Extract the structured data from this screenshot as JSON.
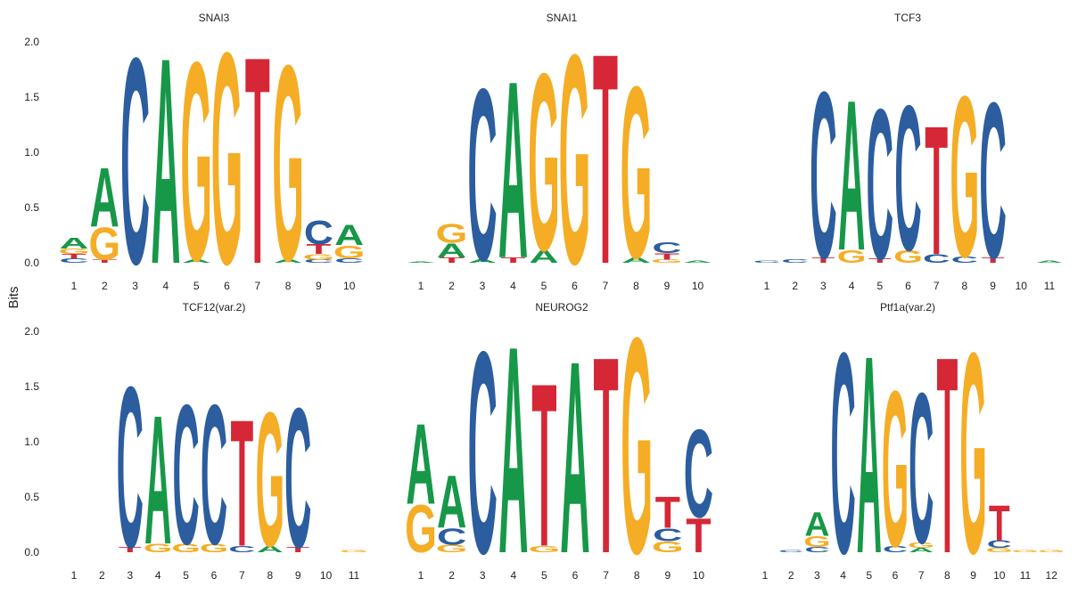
{
  "chart_data": {
    "type": "sequence_logo",
    "ylabel": "Bits",
    "ylim": [
      0,
      2
    ],
    "yticks": [
      "0.0",
      "0.5",
      "1.0",
      "1.5",
      "2.0"
    ],
    "colors": {
      "A": "#169848",
      "C": "#2b5d9f",
      "G": "#f4ad25",
      "T": "#d52736"
    },
    "panels": [
      {
        "title": "SNAI3",
        "positions": [
          "1",
          "2",
          "3",
          "4",
          "5",
          "6",
          "7",
          "8",
          "9",
          "10"
        ],
        "stacks": [
          [
            [
              "C",
              0.04
            ],
            [
              "T",
              0.04
            ],
            [
              "G",
              0.05
            ],
            [
              "A",
              0.1
            ]
          ],
          [
            [
              "T",
              0.03
            ],
            [
              "G",
              0.3
            ],
            [
              "A",
              0.55
            ]
          ],
          [
            [
              "C",
              1.92
            ]
          ],
          [
            [
              "A",
              1.92
            ]
          ],
          [
            [
              "A",
              0.03
            ],
            [
              "G",
              1.85
            ]
          ],
          [
            [
              "G",
              1.97
            ]
          ],
          [
            [
              "T",
              1.93
            ]
          ],
          [
            [
              "A",
              0.03
            ],
            [
              "G",
              1.82
            ]
          ],
          [
            [
              "C",
              0.03
            ],
            [
              "G",
              0.05
            ],
            [
              "T",
              0.09
            ],
            [
              "C",
              0.22
            ]
          ],
          [
            [
              "C",
              0.04
            ],
            [
              "G",
              0.12
            ],
            [
              "A",
              0.19
            ]
          ]
        ]
      },
      {
        "title": "SNAI1",
        "positions": [
          "1",
          "2",
          "3",
          "4",
          "5",
          "6",
          "7",
          "8",
          "9",
          "10"
        ],
        "stacks": [
          [
            [
              "A",
              0.01
            ]
          ],
          [
            [
              "T",
              0.05
            ],
            [
              "A",
              0.13
            ],
            [
              "G",
              0.18
            ]
          ],
          [
            [
              "A",
              0.03
            ],
            [
              "C",
              1.6
            ]
          ],
          [
            [
              "T",
              0.05
            ],
            [
              "A",
              1.65
            ]
          ],
          [
            [
              "A",
              0.12
            ],
            [
              "G",
              1.65
            ]
          ],
          [
            [
              "G",
              1.95
            ]
          ],
          [
            [
              "T",
              1.96
            ]
          ],
          [
            [
              "A",
              0.05
            ],
            [
              "G",
              1.6
            ]
          ],
          [
            [
              "G",
              0.03
            ],
            [
              "T",
              0.06
            ],
            [
              "C",
              0.1
            ]
          ],
          [
            [
              "A",
              0.02
            ]
          ]
        ]
      },
      {
        "title": "TCF3",
        "positions": [
          "1",
          "2",
          "3",
          "4",
          "5",
          "6",
          "7",
          "8",
          "9",
          "10",
          "11"
        ],
        "stacks": [
          [
            [
              "C",
              0.02
            ]
          ],
          [
            [
              "C",
              0.03
            ]
          ],
          [
            [
              "T",
              0.05
            ],
            [
              "C",
              1.55
            ]
          ],
          [
            [
              "G",
              0.12
            ],
            [
              "A",
              1.4
            ]
          ],
          [
            [
              "T",
              0.04
            ],
            [
              "C",
              1.4
            ]
          ],
          [
            [
              "G",
              0.12
            ],
            [
              "C",
              1.35
            ]
          ],
          [
            [
              "C",
              0.08
            ],
            [
              "T",
              1.2
            ]
          ],
          [
            [
              "C",
              0.06
            ],
            [
              "G",
              1.5
            ]
          ],
          [
            [
              "T",
              0.05
            ],
            [
              "C",
              1.45
            ]
          ],
          [],
          [
            [
              "A",
              0.02
            ]
          ]
        ]
      },
      {
        "title": "TCF12(var.2)",
        "positions": [
          "1",
          "2",
          "3",
          "4",
          "5",
          "6",
          "7",
          "8",
          "9",
          "10",
          "11"
        ],
        "stacks": [
          [],
          [],
          [
            [
              "T",
              0.05
            ],
            [
              "C",
              1.5
            ]
          ],
          [
            [
              "G",
              0.08
            ],
            [
              "A",
              1.2
            ]
          ],
          [
            [
              "G",
              0.08
            ],
            [
              "C",
              1.3
            ]
          ],
          [
            [
              "G",
              0.08
            ],
            [
              "C",
              1.3
            ]
          ],
          [
            [
              "C",
              0.06
            ],
            [
              "T",
              1.18
            ]
          ],
          [
            [
              "A",
              0.06
            ],
            [
              "G",
              1.25
            ]
          ],
          [
            [
              "T",
              0.05
            ],
            [
              "C",
              1.3
            ]
          ],
          [],
          [
            [
              "G",
              0.02
            ]
          ]
        ]
      },
      {
        "title": "NEUROG2",
        "positions": [
          "1",
          "2",
          "3",
          "4",
          "5",
          "6",
          "7",
          "8",
          "9",
          "10"
        ],
        "stacks": [
          [
            [
              "G",
              0.44
            ],
            [
              "A",
              0.75
            ]
          ],
          [
            [
              "G",
              0.07
            ],
            [
              "C",
              0.15
            ],
            [
              "A",
              0.49
            ]
          ],
          [
            [
              "C",
              1.88
            ]
          ],
          [
            [
              "A",
              1.93
            ]
          ],
          [
            [
              "G",
              0.06
            ],
            [
              "T",
              1.52
            ]
          ],
          [
            [
              "A",
              1.79
            ]
          ],
          [
            [
              "T",
              1.83
            ]
          ],
          [
            [
              "G",
              2.01
            ]
          ],
          [
            [
              "G",
              0.1
            ],
            [
              "C",
              0.12
            ],
            [
              "T",
              0.29
            ]
          ],
          [
            [
              "T",
              0.32
            ],
            [
              "C",
              0.82
            ]
          ]
        ]
      },
      {
        "title": "Ptf1a(var.2)",
        "positions": [
          "1",
          "2",
          "3",
          "4",
          "5",
          "6",
          "7",
          "8",
          "9",
          "10",
          "11",
          "12"
        ],
        "stacks": [
          [],
          [
            [
              "C",
              0.02
            ]
          ],
          [
            [
              "C",
              0.05
            ],
            [
              "G",
              0.1
            ],
            [
              "A",
              0.22
            ]
          ],
          [
            [
              "C",
              1.87
            ]
          ],
          [
            [
              "A",
              1.84
            ]
          ],
          [
            [
              "C",
              0.06
            ],
            [
              "G",
              1.45
            ]
          ],
          [
            [
              "A",
              0.04
            ],
            [
              "G",
              0.05
            ],
            [
              "C",
              1.4
            ]
          ],
          [
            [
              "T",
              1.83
            ]
          ],
          [
            [
              "G",
              1.87
            ]
          ],
          [
            [
              "G",
              0.04
            ],
            [
              "C",
              0.07
            ],
            [
              "T",
              0.33
            ]
          ],
          [
            [
              "G",
              0.02
            ]
          ],
          [
            [
              "G",
              0.02
            ]
          ]
        ]
      }
    ]
  }
}
